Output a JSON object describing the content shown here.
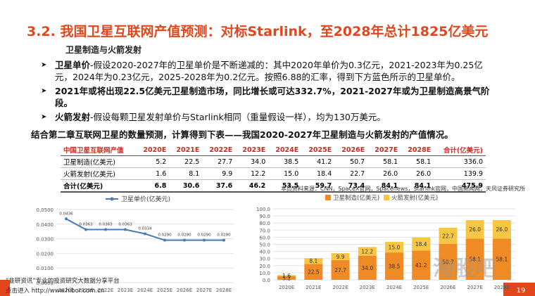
{
  "header": {
    "title": "3.2. 我国卫星互联网产值预测：对标Starlink，至2028年总计1825亿美元",
    "subtitle": "卫星制造与火箭发射"
  },
  "bullets": [
    {
      "lead": "卫星单价",
      "text": "-假设2020-2027年的卫星单价是不断递减的：其中2020年单价为0.3亿元，2021-2023年为0.25亿元，2024年为0.23亿元，2025-2028年为0.2亿元。按照6.88的汇率，得到下方蓝色所示的卫星单价。"
    },
    {
      "lead": "2021年或将出现22.5亿美元卫星制造市场，同比增长或可达332.7%，2021-2027年或为卫星制造高景气阶段。"
    },
    {
      "lead": "火箭发射",
      "text": "-假设每颗卫星发射单价与Starlink相同（重量假设一样），均为130万美元。"
    }
  ],
  "intro": "结合第二章互联网卫星的数量预测，计算得到下表——我国2020-2027年卫星制造与火箭发射的产值情况。",
  "table": {
    "header": [
      "中国卫星互联网产值",
      "2020E",
      "2021E",
      "2022E",
      "2023E",
      "2024E",
      "2025E",
      "2026E",
      "2027E",
      "2028E",
      "合计(亿美元)"
    ],
    "rows": [
      [
        "卫星制造(亿美元)",
        "5.2",
        "22.5",
        "27.7",
        "34.0",
        "38.5",
        "41.2",
        "50.7",
        "58.1",
        "58.1",
        "336.0"
      ],
      [
        "火箭发射(亿美元)",
        "1.6",
        "8.1",
        "9.9",
        "12.2",
        "15.0",
        "18.4",
        "22.7",
        "26.0",
        "26.0",
        "139.9"
      ],
      [
        "合计(亿美元)",
        "6.8",
        "30.6",
        "37.6",
        "46.2",
        "53.5",
        "59.7",
        "73.4",
        "84.1",
        "84.1",
        "475.9"
      ]
    ]
  },
  "source": "本页资料来源：CNN，SpaceX官网，Spacenews，Starlink官网，中国新闻网，天风证券研究所",
  "chart_data": [
    {
      "type": "line",
      "categories": [
        "2020E",
        "2021E",
        "2022E",
        "2023E",
        "2024E",
        "2025E",
        "2026E",
        "2027E",
        "2028E"
      ],
      "series": [
        {
          "name": "卫星单价(亿美元)",
          "color": "#4a7ab8",
          "values": [
            0.0436,
            0.0363,
            0.0363,
            0.0363,
            0.0334,
            0.029,
            0.029,
            0.029,
            0.029
          ],
          "value_labels": [
            "0.0436",
            "0.0363",
            "0.0363",
            "0.0363",
            "0.0334",
            "0.0290",
            "0.0290",
            "0.0290",
            "0.0290"
          ]
        }
      ],
      "ylim": [
        0,
        0.05
      ],
      "yticks": [
        {
          "value": 0,
          "label": "0.0000"
        },
        {
          "value": 0.01,
          "label": "0.0100"
        },
        {
          "value": 0.02,
          "label": "0.0200"
        },
        {
          "value": 0.03,
          "label": "0.0300"
        },
        {
          "value": 0.04,
          "label": "0.0400"
        },
        {
          "value": 0.05,
          "label": "0.0500"
        }
      ],
      "grid": true
    },
    {
      "type": "stacked-bar",
      "categories": [
        "2020E",
        "2021E",
        "2022E",
        "2023E",
        "2024E",
        "2025E",
        "2026E",
        "2027E",
        "2028E"
      ],
      "series": [
        {
          "name": "卫星制造(亿美元)",
          "color": "#f08a24",
          "values": [
            5.2,
            22.5,
            27.7,
            34,
            38.5,
            41.2,
            50.7,
            58.1,
            58.1
          ],
          "value_labels": [
            "5.2",
            "22.5",
            "27.7",
            "34.0",
            "38.5",
            "41.2",
            "50.7",
            "58.1",
            "58.1"
          ]
        },
        {
          "name": "火箭发射(亿美元)",
          "color": "#f7c645",
          "values": [
            1.6,
            8.1,
            9.9,
            12.2,
            15,
            18.4,
            22.7,
            26,
            26
          ],
          "value_labels": [
            "1.6",
            "8.1",
            "9.9",
            "12.2",
            "15.0",
            "18.4",
            "22.7",
            "26.0",
            "26.0"
          ]
        }
      ],
      "ylim": [
        0,
        100
      ],
      "yticks": [
        {
          "value": 0,
          "label": "0.0"
        },
        {
          "value": 10,
          "label": "10.0"
        },
        {
          "value": 20,
          "label": "20.0"
        },
        {
          "value": 30,
          "label": "30.0"
        },
        {
          "value": 40,
          "label": "40.0"
        },
        {
          "value": 50,
          "label": "50.0"
        },
        {
          "value": 60,
          "label": "60.0"
        },
        {
          "value": 70,
          "label": "70.0"
        },
        {
          "value": 80,
          "label": "80.0"
        },
        {
          "value": 90,
          "label": "90.0"
        },
        {
          "value": 100,
          "label": "100.0"
        }
      ],
      "grid": true
    }
  ],
  "footer": {
    "brand": "“韭研资讯”专业的投资研究大数据分享平台",
    "link": "点击进入 http://www.hibor.com.cn",
    "watermark": "淘股吧",
    "page": "19"
  }
}
